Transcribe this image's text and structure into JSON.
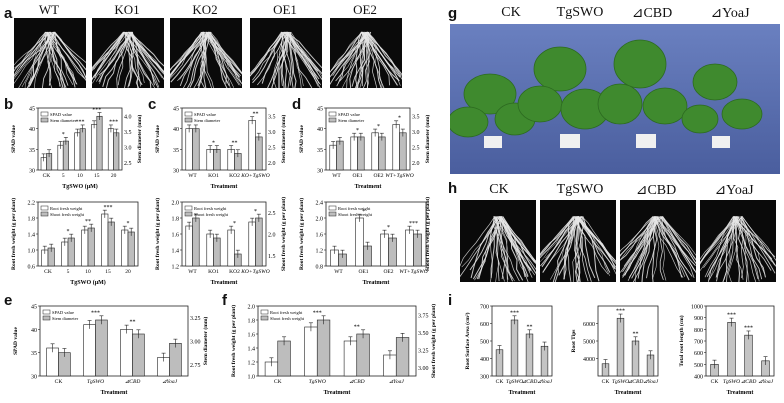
{
  "labels": {
    "a": "a",
    "b": "b",
    "c": "c",
    "d": "d",
    "e": "e",
    "f": "f",
    "g": "g",
    "h": "h",
    "i": "i"
  },
  "panel_a": {
    "headers": [
      "WT",
      "KO1",
      "KO2",
      "OE1",
      "OE2"
    ]
  },
  "panel_g": {
    "headers": [
      "CK",
      "TgSWO",
      "⊿CBD",
      "⊿YoaJ"
    ]
  },
  "panel_h": {
    "headers": [
      "CK",
      "TgSWO",
      "⊿CBD",
      "⊿YoaJ"
    ]
  },
  "colors": {
    "dark_bar": "#ffffff",
    "light_bar": "#bdbdbd",
    "photo_bg": "#5a6fb0",
    "leaf": "#3f8a2e",
    "root_bg": "#0a0a0a"
  },
  "chart_data": [
    {
      "id": "b_top",
      "type": "bar",
      "ylabel": "SPAD value",
      "y2label": "Stem diameter (mm)",
      "xlabel": "TgSWO (μM)",
      "categories": [
        "CK",
        "5",
        "10",
        "15",
        "20"
      ],
      "legend": [
        "SPAD value",
        "Stem diameter"
      ],
      "series": [
        {
          "name": "SPAD value",
          "values": [
            33,
            36,
            39,
            41,
            40
          ]
        },
        {
          "name": "Stem diameter",
          "values": [
            34,
            37,
            40,
            43,
            39
          ]
        }
      ],
      "ylim": [
        30,
        45
      ],
      "ticks": [
        "30",
        "35",
        "40",
        "45"
      ],
      "y2ticks": [
        "2.5",
        "3.0",
        "3.5",
        "4.0"
      ],
      "stars": [
        "",
        "*",
        "***",
        "***",
        "***"
      ]
    },
    {
      "id": "c_top",
      "type": "bar",
      "ylabel": "SPAD value",
      "y2label": "Stem diameter (mm)",
      "xlabel": "Treatment",
      "categories": [
        "WT",
        "KO1",
        "KO2",
        "KO+TgSWO"
      ],
      "legend": [
        "SPAD value",
        "Stem diameter"
      ],
      "series": [
        {
          "name": "SPAD value",
          "values": [
            40,
            35,
            35,
            42
          ]
        },
        {
          "name": "Stem diameter",
          "values": [
            40,
            35,
            34,
            38
          ]
        }
      ],
      "ylim": [
        30,
        45
      ],
      "ticks": [
        "30",
        "35",
        "40",
        "45"
      ],
      "y2ticks": [
        "2.0",
        "2.5",
        "3.0",
        "3.5"
      ],
      "stars": [
        "",
        "*",
        "**",
        "**"
      ]
    },
    {
      "id": "d_top",
      "type": "bar",
      "ylabel": "SPAD value",
      "y2label": "Stem diameter (mm)",
      "xlabel": "Treatment",
      "categories": [
        "WT",
        "OE1",
        "OE2",
        "WT+TgSWO"
      ],
      "legend": [
        "SPAD value",
        "Stem diameter"
      ],
      "series": [
        {
          "name": "SPAD value",
          "values": [
            36,
            38,
            39,
            41
          ]
        },
        {
          "name": "Stem diameter",
          "values": [
            37,
            38,
            38,
            39
          ]
        }
      ],
      "ylim": [
        30,
        45
      ],
      "ticks": [
        "30",
        "35",
        "40",
        "45"
      ],
      "y2ticks": [
        "2.0",
        "2.5",
        "3.0",
        "3.5"
      ],
      "stars": [
        "",
        "*",
        "*",
        "*"
      ]
    },
    {
      "id": "b_bot",
      "type": "bar",
      "ylabel": "Root fresh weight (g per plant)",
      "y2label": "",
      "xlabel": "TgSWO (μM)",
      "categories": [
        "CK",
        "5",
        "10",
        "15",
        "20"
      ],
      "legend": [
        "Root fresh weight",
        "Shoot fresh weight"
      ],
      "series": [
        {
          "name": "Root fresh weight",
          "values": [
            1.0,
            1.2,
            1.5,
            1.9,
            1.5
          ]
        },
        {
          "name": "Shoot fresh weight",
          "values": [
            1.05,
            1.3,
            1.55,
            1.7,
            1.45
          ]
        }
      ],
      "ylim": [
        0.6,
        2.2
      ],
      "ticks": [
        "0.6",
        "1.0",
        "1.4",
        "1.8",
        "2.2"
      ],
      "y2ticks": [],
      "stars": [
        "",
        "*",
        "**",
        "***",
        "*"
      ]
    },
    {
      "id": "c_bot",
      "type": "bar",
      "ylabel": "Root fresh weight (g per plant)",
      "y2label": "Shoot fresh weight (g per plant)",
      "xlabel": "Treatment",
      "categories": [
        "WT",
        "KO1",
        "KO2",
        "KO+TgSWO"
      ],
      "legend": [
        "Root fresh weight",
        "Shoot fresh weight"
      ],
      "series": [
        {
          "name": "Root fresh weight",
          "values": [
            1.7,
            1.6,
            1.65,
            1.75
          ]
        },
        {
          "name": "Shoot fresh weight",
          "values": [
            1.8,
            1.55,
            1.35,
            1.8
          ]
        }
      ],
      "ylim": [
        1.2,
        2.0
      ],
      "ticks": [
        "1.2",
        "1.4",
        "1.6",
        "1.8",
        "2.0"
      ],
      "y2ticks": [
        "1.5",
        "2.0",
        "2.5"
      ],
      "stars": [
        "",
        "",
        "*",
        "*"
      ]
    },
    {
      "id": "d_bot",
      "type": "bar",
      "ylabel": "Root fresh weight (g per plant)",
      "y2label": "Shoot fresh weight (g per plant)",
      "xlabel": "Treatment",
      "categories": [
        "WT",
        "OE1",
        "OE2",
        "WT+TgSWO"
      ],
      "legend": [
        "Root fresh weight",
        "Shoot fresh weight"
      ],
      "series": [
        {
          "name": "Root fresh weight",
          "values": [
            1.2,
            2.0,
            1.6,
            1.7
          ]
        },
        {
          "name": "Shoot fresh weight",
          "values": [
            1.1,
            1.3,
            1.5,
            1.6
          ]
        }
      ],
      "ylim": [
        0.8,
        2.4
      ],
      "ticks": [
        "0.8",
        "1.2",
        "1.6",
        "2.0",
        "2.4"
      ],
      "y2ticks": [],
      "stars": [
        "",
        "*",
        "*",
        "***"
      ]
    },
    {
      "id": "e",
      "type": "bar",
      "ylabel": "SPAD value",
      "y2label": "Stem diameter (mm)",
      "xlabel": "Treatment",
      "categories": [
        "CK",
        "TgSWO",
        "⊿CBD",
        "⊿YoaJ"
      ],
      "legend": [
        "SPAD value",
        "Stem diameter"
      ],
      "series": [
        {
          "name": "SPAD value",
          "values": [
            36,
            41,
            40,
            34
          ]
        },
        {
          "name": "Stem diameter",
          "values": [
            35,
            42,
            39,
            37
          ]
        }
      ],
      "ylim": [
        30,
        45
      ],
      "ticks": [
        "30",
        "35",
        "40",
        "45"
      ],
      "y2ticks": [
        "2.75",
        "3.00",
        "3.25"
      ],
      "stars": [
        "",
        "***",
        "**",
        ""
      ]
    },
    {
      "id": "f",
      "type": "bar",
      "ylabel": "Root fresh weight (g per plant)",
      "y2label": "Shoot fresh weight (g per plant)",
      "xlabel": "Treatment",
      "categories": [
        "CK",
        "TgSWO",
        "⊿CBD",
        "⊿YoaJ"
      ],
      "legend": [
        "Root fresh weight",
        "Shoot fresh weight"
      ],
      "series": [
        {
          "name": "Root fresh weight",
          "values": [
            1.2,
            1.7,
            1.5,
            1.3
          ]
        },
        {
          "name": "Shoot fresh weight",
          "values": [
            1.5,
            1.8,
            1.6,
            1.55
          ]
        }
      ],
      "ylim": [
        1.0,
        2.0
      ],
      "ticks": [
        "1.0",
        "1.2",
        "1.4",
        "1.6",
        "1.8",
        "2.0"
      ],
      "y2ticks": [
        "3.00",
        "3.25",
        "3.50",
        "3.75"
      ],
      "stars": [
        "",
        "***",
        "**",
        ""
      ]
    },
    {
      "id": "i1",
      "type": "bar",
      "ylabel": "Root Surface Area (cm²)",
      "y2label": "",
      "xlabel": "Treatment",
      "categories": [
        "CK",
        "TgSWO",
        "⊿CBD",
        "⊿YoaJ"
      ],
      "legend": [],
      "series": [
        {
          "name": "",
          "values": [
            450,
            620,
            540,
            470
          ]
        }
      ],
      "ylim": [
        300,
        700
      ],
      "ticks": [
        "300",
        "400",
        "500",
        "600",
        "700"
      ],
      "y2ticks": [],
      "stars": [
        "",
        "***",
        "**",
        ""
      ]
    },
    {
      "id": "i2",
      "type": "bar",
      "ylabel": "Root Tips",
      "y2label": "",
      "xlabel": "Treatment",
      "categories": [
        "CK",
        "TgSWO",
        "⊿CBD",
        "⊿YoaJ"
      ],
      "legend": [],
      "series": [
        {
          "name": "",
          "values": [
            3700,
            6300,
            5000,
            4200
          ]
        }
      ],
      "ylim": [
        3000,
        7000
      ],
      "ticks": [
        "4000",
        "5000",
        "6000"
      ],
      "y2ticks": [],
      "stars": [
        "",
        "***",
        "**",
        ""
      ]
    },
    {
      "id": "i3",
      "type": "bar",
      "ylabel": "Total root length (cm)",
      "y2label": "",
      "xlabel": "Treatment",
      "categories": [
        "CK",
        "TgSWO",
        "⊿CBD",
        "⊿YoaJ"
      ],
      "legend": [],
      "series": [
        {
          "name": "",
          "values": [
            500,
            860,
            750,
            530
          ]
        }
      ],
      "ylim": [
        400,
        1000
      ],
      "ticks": [
        "400",
        "500",
        "600",
        "700",
        "800",
        "900",
        "1000"
      ],
      "y2ticks": [],
      "stars": [
        "",
        "***",
        "***",
        ""
      ]
    }
  ]
}
